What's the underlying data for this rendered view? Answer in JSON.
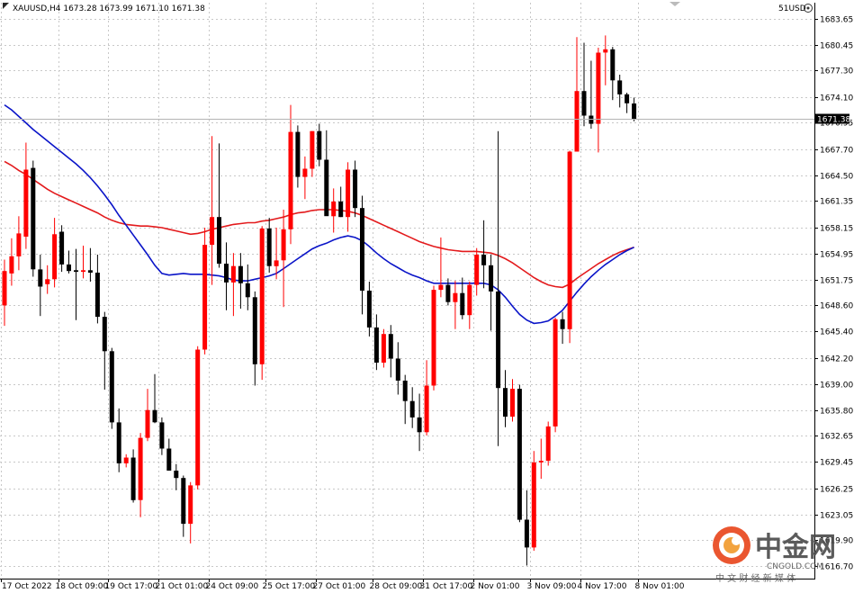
{
  "header": {
    "symbol_info": "XAUUSD,H4  1673.28 1673.99 1671.10 1671.38",
    "account_label": "51USD"
  },
  "chart_data": {
    "type": "candlestick",
    "symbol": "XAUUSD",
    "timeframe": "H4",
    "grid": true,
    "ylim": [
      1615.2,
      1685.6
    ],
    "y_ticks": [
      "1683.65",
      "1680.45",
      "1677.30",
      "1674.10",
      "1670.95",
      "1667.70",
      "1664.50",
      "1661.35",
      "1658.15",
      "1654.95",
      "1651.75",
      "1648.60",
      "1645.40",
      "1642.20",
      "1639.00",
      "1635.80",
      "1632.65",
      "1629.45",
      "1626.25",
      "1623.05",
      "1619.90",
      "1616.70"
    ],
    "current_price": "1671.38",
    "x_ticks": [
      "17 Oct 2022",
      "18 Oct 09:00",
      "19 Oct 17:00",
      "21 Oct 01:00",
      "24 Oct 09:00",
      "25 Oct 17:00",
      "27 Oct 01:00",
      "28 Oct 09:00",
      "31 Oct 17:00",
      "2 Nov 01:00",
      "3 Nov 09:00",
      "4 Nov 17:00",
      "8 Nov 01:00"
    ],
    "candles": [
      {
        "o": 1648.6,
        "h": 1654.2,
        "l": 1646.1,
        "c": 1652.8
      },
      {
        "o": 1652.5,
        "h": 1656.8,
        "l": 1651.0,
        "c": 1654.6
      },
      {
        "o": 1654.6,
        "h": 1659.5,
        "l": 1652.9,
        "c": 1657.4
      },
      {
        "o": 1657.0,
        "h": 1668.5,
        "l": 1655.5,
        "c": 1665.2
      },
      {
        "o": 1665.4,
        "h": 1666.3,
        "l": 1652.1,
        "c": 1653.0
      },
      {
        "o": 1653.0,
        "h": 1654.8,
        "l": 1647.3,
        "c": 1650.9
      },
      {
        "o": 1651.2,
        "h": 1653.5,
        "l": 1650.0,
        "c": 1651.8
      },
      {
        "o": 1651.8,
        "h": 1659.3,
        "l": 1650.8,
        "c": 1657.3
      },
      {
        "o": 1657.6,
        "h": 1658.4,
        "l": 1652.7,
        "c": 1653.6
      },
      {
        "o": 1653.6,
        "h": 1655.3,
        "l": 1652.5,
        "c": 1652.8
      },
      {
        "o": 1652.9,
        "h": 1655.5,
        "l": 1646.8,
        "c": 1652.7
      },
      {
        "o": 1652.7,
        "h": 1655.9,
        "l": 1651.9,
        "c": 1652.9
      },
      {
        "o": 1652.9,
        "h": 1655.6,
        "l": 1651.5,
        "c": 1652.6
      },
      {
        "o": 1652.6,
        "h": 1654.8,
        "l": 1646.4,
        "c": 1647.2
      },
      {
        "o": 1647.2,
        "h": 1647.8,
        "l": 1638.3,
        "c": 1643.0
      },
      {
        "o": 1643.0,
        "h": 1643.4,
        "l": 1633.5,
        "c": 1634.3
      },
      {
        "o": 1634.3,
        "h": 1636.0,
        "l": 1628.2,
        "c": 1629.3
      },
      {
        "o": 1629.3,
        "h": 1630.4,
        "l": 1628.8,
        "c": 1630.0
      },
      {
        "o": 1630.0,
        "h": 1631.0,
        "l": 1624.5,
        "c": 1624.8
      },
      {
        "o": 1624.8,
        "h": 1633.0,
        "l": 1622.7,
        "c": 1632.4
      },
      {
        "o": 1632.4,
        "h": 1638.4,
        "l": 1632.0,
        "c": 1635.8
      },
      {
        "o": 1635.8,
        "h": 1640.2,
        "l": 1634.2,
        "c": 1634.3
      },
      {
        "o": 1634.3,
        "h": 1634.9,
        "l": 1630.3,
        "c": 1631.1
      },
      {
        "o": 1631.1,
        "h": 1632.3,
        "l": 1628.7,
        "c": 1628.4
      },
      {
        "o": 1628.4,
        "h": 1629.2,
        "l": 1626.0,
        "c": 1627.5
      },
      {
        "o": 1627.5,
        "h": 1627.8,
        "l": 1620.3,
        "c": 1621.9
      },
      {
        "o": 1621.9,
        "h": 1627.0,
        "l": 1619.5,
        "c": 1626.6
      },
      {
        "o": 1626.6,
        "h": 1643.6,
        "l": 1626.1,
        "c": 1643.2
      },
      {
        "o": 1643.2,
        "h": 1658.1,
        "l": 1642.6,
        "c": 1656.0
      },
      {
        "o": 1656.0,
        "h": 1669.3,
        "l": 1651.1,
        "c": 1659.4
      },
      {
        "o": 1659.4,
        "h": 1668.4,
        "l": 1653.2,
        "c": 1653.7
      },
      {
        "o": 1653.7,
        "h": 1656.3,
        "l": 1648.0,
        "c": 1651.4
      },
      {
        "o": 1651.4,
        "h": 1655.0,
        "l": 1647.3,
        "c": 1653.4
      },
      {
        "o": 1653.4,
        "h": 1655.0,
        "l": 1648.2,
        "c": 1651.3
      },
      {
        "o": 1651.3,
        "h": 1653.6,
        "l": 1648.0,
        "c": 1649.6
      },
      {
        "o": 1649.6,
        "h": 1650.3,
        "l": 1638.8,
        "c": 1641.4
      },
      {
        "o": 1641.4,
        "h": 1658.3,
        "l": 1639.5,
        "c": 1658.0
      },
      {
        "o": 1658.0,
        "h": 1659.3,
        "l": 1652.6,
        "c": 1653.4
      },
      {
        "o": 1653.4,
        "h": 1658.1,
        "l": 1651.8,
        "c": 1654.1
      },
      {
        "o": 1654.1,
        "h": 1660.3,
        "l": 1648.4,
        "c": 1657.9
      },
      {
        "o": 1657.9,
        "h": 1673.1,
        "l": 1656.1,
        "c": 1669.8
      },
      {
        "o": 1669.8,
        "h": 1670.6,
        "l": 1663.0,
        "c": 1664.3
      },
      {
        "o": 1664.3,
        "h": 1666.8,
        "l": 1661.6,
        "c": 1665.3
      },
      {
        "o": 1665.3,
        "h": 1669.9,
        "l": 1664.3,
        "c": 1669.9
      },
      {
        "o": 1669.9,
        "h": 1670.8,
        "l": 1665.6,
        "c": 1666.4
      },
      {
        "o": 1666.4,
        "h": 1670.0,
        "l": 1659.8,
        "c": 1659.5
      },
      {
        "o": 1659.5,
        "h": 1662.9,
        "l": 1657.5,
        "c": 1661.3
      },
      {
        "o": 1661.3,
        "h": 1663.1,
        "l": 1659.4,
        "c": 1659.4
      },
      {
        "o": 1659.4,
        "h": 1666.1,
        "l": 1657.6,
        "c": 1665.2
      },
      {
        "o": 1665.2,
        "h": 1666.3,
        "l": 1659.4,
        "c": 1660.5
      },
      {
        "o": 1660.5,
        "h": 1662.0,
        "l": 1647.5,
        "c": 1650.4
      },
      {
        "o": 1650.4,
        "h": 1651.5,
        "l": 1644.8,
        "c": 1645.9
      },
      {
        "o": 1645.9,
        "h": 1647.5,
        "l": 1640.7,
        "c": 1641.6
      },
      {
        "o": 1641.6,
        "h": 1645.7,
        "l": 1641.0,
        "c": 1645.1
      },
      {
        "o": 1645.1,
        "h": 1646.2,
        "l": 1639.8,
        "c": 1642.1
      },
      {
        "o": 1642.1,
        "h": 1644.1,
        "l": 1637.7,
        "c": 1639.4
      },
      {
        "o": 1639.4,
        "h": 1640.1,
        "l": 1634.1,
        "c": 1636.9
      },
      {
        "o": 1636.9,
        "h": 1638.6,
        "l": 1633.6,
        "c": 1634.9
      },
      {
        "o": 1634.9,
        "h": 1637.8,
        "l": 1630.8,
        "c": 1633.1
      },
      {
        "o": 1633.1,
        "h": 1641.9,
        "l": 1632.7,
        "c": 1638.8
      },
      {
        "o": 1638.8,
        "h": 1651.0,
        "l": 1638.2,
        "c": 1650.5
      },
      {
        "o": 1650.5,
        "h": 1656.9,
        "l": 1649.6,
        "c": 1651.1
      },
      {
        "o": 1651.1,
        "h": 1651.9,
        "l": 1648.6,
        "c": 1649.0
      },
      {
        "o": 1649.0,
        "h": 1651.6,
        "l": 1645.7,
        "c": 1650.1
      },
      {
        "o": 1650.1,
        "h": 1652.0,
        "l": 1646.9,
        "c": 1647.4
      },
      {
        "o": 1647.4,
        "h": 1651.5,
        "l": 1645.7,
        "c": 1651.1
      },
      {
        "o": 1651.1,
        "h": 1655.6,
        "l": 1649.8,
        "c": 1654.8
      },
      {
        "o": 1654.8,
        "h": 1659.0,
        "l": 1650.7,
        "c": 1653.5
      },
      {
        "o": 1653.5,
        "h": 1654.8,
        "l": 1645.5,
        "c": 1650.3
      },
      {
        "o": 1650.3,
        "h": 1669.9,
        "l": 1631.4,
        "c": 1638.5
      },
      {
        "o": 1638.5,
        "h": 1640.7,
        "l": 1633.7,
        "c": 1635.0
      },
      {
        "o": 1635.0,
        "h": 1639.6,
        "l": 1634.4,
        "c": 1638.4
      },
      {
        "o": 1638.4,
        "h": 1638.9,
        "l": 1622.1,
        "c": 1622.4
      },
      {
        "o": 1622.4,
        "h": 1626.0,
        "l": 1616.8,
        "c": 1619.0
      },
      {
        "o": 1619.0,
        "h": 1630.8,
        "l": 1618.6,
        "c": 1629.4
      },
      {
        "o": 1629.4,
        "h": 1632.3,
        "l": 1627.4,
        "c": 1629.6
      },
      {
        "o": 1629.6,
        "h": 1634.4,
        "l": 1629.0,
        "c": 1633.8
      },
      {
        "o": 1633.8,
        "h": 1647.1,
        "l": 1633.1,
        "c": 1646.9
      },
      {
        "o": 1646.9,
        "h": 1647.8,
        "l": 1643.9,
        "c": 1645.7
      },
      {
        "o": 1645.7,
        "h": 1667.5,
        "l": 1644.0,
        "c": 1667.4
      },
      {
        "o": 1667.4,
        "h": 1681.4,
        "l": 1667.4,
        "c": 1674.8
      },
      {
        "o": 1674.8,
        "h": 1680.7,
        "l": 1670.5,
        "c": 1671.8
      },
      {
        "o": 1671.8,
        "h": 1678.5,
        "l": 1670.2,
        "c": 1670.8
      },
      {
        "o": 1670.8,
        "h": 1680.1,
        "l": 1667.3,
        "c": 1679.5
      },
      {
        "o": 1679.5,
        "h": 1681.6,
        "l": 1675.5,
        "c": 1679.9
      },
      {
        "o": 1679.9,
        "h": 1680.2,
        "l": 1673.7,
        "c": 1676.1
      },
      {
        "o": 1676.1,
        "h": 1676.8,
        "l": 1672.8,
        "c": 1674.4
      },
      {
        "o": 1674.4,
        "h": 1674.6,
        "l": 1672.1,
        "c": 1673.3
      },
      {
        "o": 1673.28,
        "h": 1673.99,
        "l": 1671.1,
        "c": 1671.38
      }
    ],
    "series": [
      {
        "color": "#e31a1c",
        "values": [
          1666.2,
          1665.7,
          1665.1,
          1664.6,
          1664.0,
          1663.4,
          1662.8,
          1662.3,
          1661.9,
          1661.5,
          1661.1,
          1660.7,
          1660.3,
          1659.9,
          1659.4,
          1659.0,
          1658.7,
          1658.5,
          1658.4,
          1658.3,
          1658.3,
          1658.2,
          1658.1,
          1657.9,
          1657.7,
          1657.5,
          1657.3,
          1657.4,
          1657.6,
          1657.9,
          1658.1,
          1658.3,
          1658.5,
          1658.6,
          1658.7,
          1658.7,
          1658.9,
          1659.0,
          1659.2,
          1659.4,
          1659.7,
          1659.9,
          1660.0,
          1660.2,
          1660.3,
          1660.3,
          1660.3,
          1660.2,
          1660.1,
          1659.9,
          1659.6,
          1659.2,
          1658.8,
          1658.4,
          1658.0,
          1657.6,
          1657.2,
          1656.8,
          1656.4,
          1656.1,
          1655.8,
          1655.6,
          1655.4,
          1655.3,
          1655.2,
          1655.2,
          1655.2,
          1655.1,
          1655.0,
          1654.7,
          1654.3,
          1653.8,
          1653.2,
          1652.6,
          1652.0,
          1651.5,
          1651.1,
          1650.9,
          1650.8,
          1651.2,
          1651.9,
          1652.5,
          1653.1,
          1653.7,
          1654.2,
          1654.7,
          1655.1,
          1655.4,
          1655.7
        ]
      },
      {
        "color": "#0a14c8",
        "values": [
          1673.1,
          1672.5,
          1671.7,
          1670.9,
          1670.1,
          1669.4,
          1668.7,
          1668.0,
          1667.3,
          1666.6,
          1665.9,
          1665.1,
          1664.2,
          1663.2,
          1662.1,
          1660.9,
          1659.6,
          1658.4,
          1657.2,
          1656.0,
          1654.8,
          1653.5,
          1652.5,
          1652.3,
          1652.4,
          1652.5,
          1652.4,
          1652.4,
          1652.4,
          1652.3,
          1652.2,
          1652.0,
          1651.7,
          1651.6,
          1651.6,
          1651.8,
          1652.0,
          1652.2,
          1652.5,
          1653.1,
          1653.7,
          1654.3,
          1654.9,
          1655.5,
          1655.9,
          1656.2,
          1656.6,
          1656.9,
          1657.1,
          1656.9,
          1656.5,
          1655.8,
          1655.0,
          1654.3,
          1653.7,
          1653.2,
          1652.7,
          1652.3,
          1652.0,
          1651.6,
          1651.3,
          1651.3,
          1651.3,
          1651.3,
          1651.3,
          1651.3,
          1651.3,
          1651.3,
          1651.1,
          1650.5,
          1649.6,
          1648.5,
          1647.5,
          1646.8,
          1646.4,
          1646.5,
          1646.7,
          1647.3,
          1648.0,
          1649.1,
          1650.2,
          1651.2,
          1652.1,
          1652.9,
          1653.6,
          1654.2,
          1654.8,
          1655.3,
          1655.7
        ]
      }
    ]
  },
  "watermark": {
    "logo_text": "中金网",
    "site": "CNGOLD.COM",
    "tagline": "中 文 财 经 新 媒 体"
  }
}
